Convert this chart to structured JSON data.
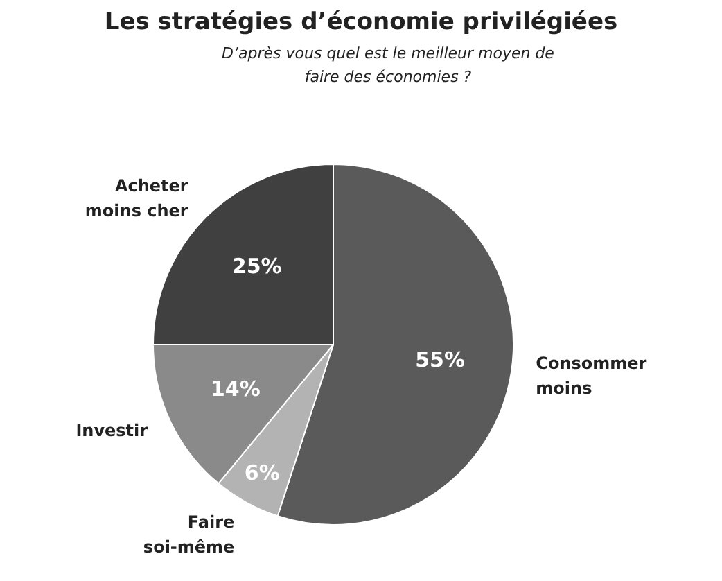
{
  "chart_data": {
    "type": "pie",
    "title": "Les stratégies d’économie privilégiées",
    "subtitle": "D’après vous quel est le meilleur moyen de faire des économies ?",
    "categories": [
      "Consommer moins",
      "Faire soi-même",
      "Investir",
      "Acheter moins cher"
    ],
    "values": [
      55,
      6,
      14,
      25
    ],
    "value_labels": [
      "55%",
      "6%",
      "14%",
      "25%"
    ],
    "colors": [
      "#5a5a5a",
      "#b3b3b3",
      "#8a8a8a",
      "#404040"
    ],
    "legend": false
  }
}
